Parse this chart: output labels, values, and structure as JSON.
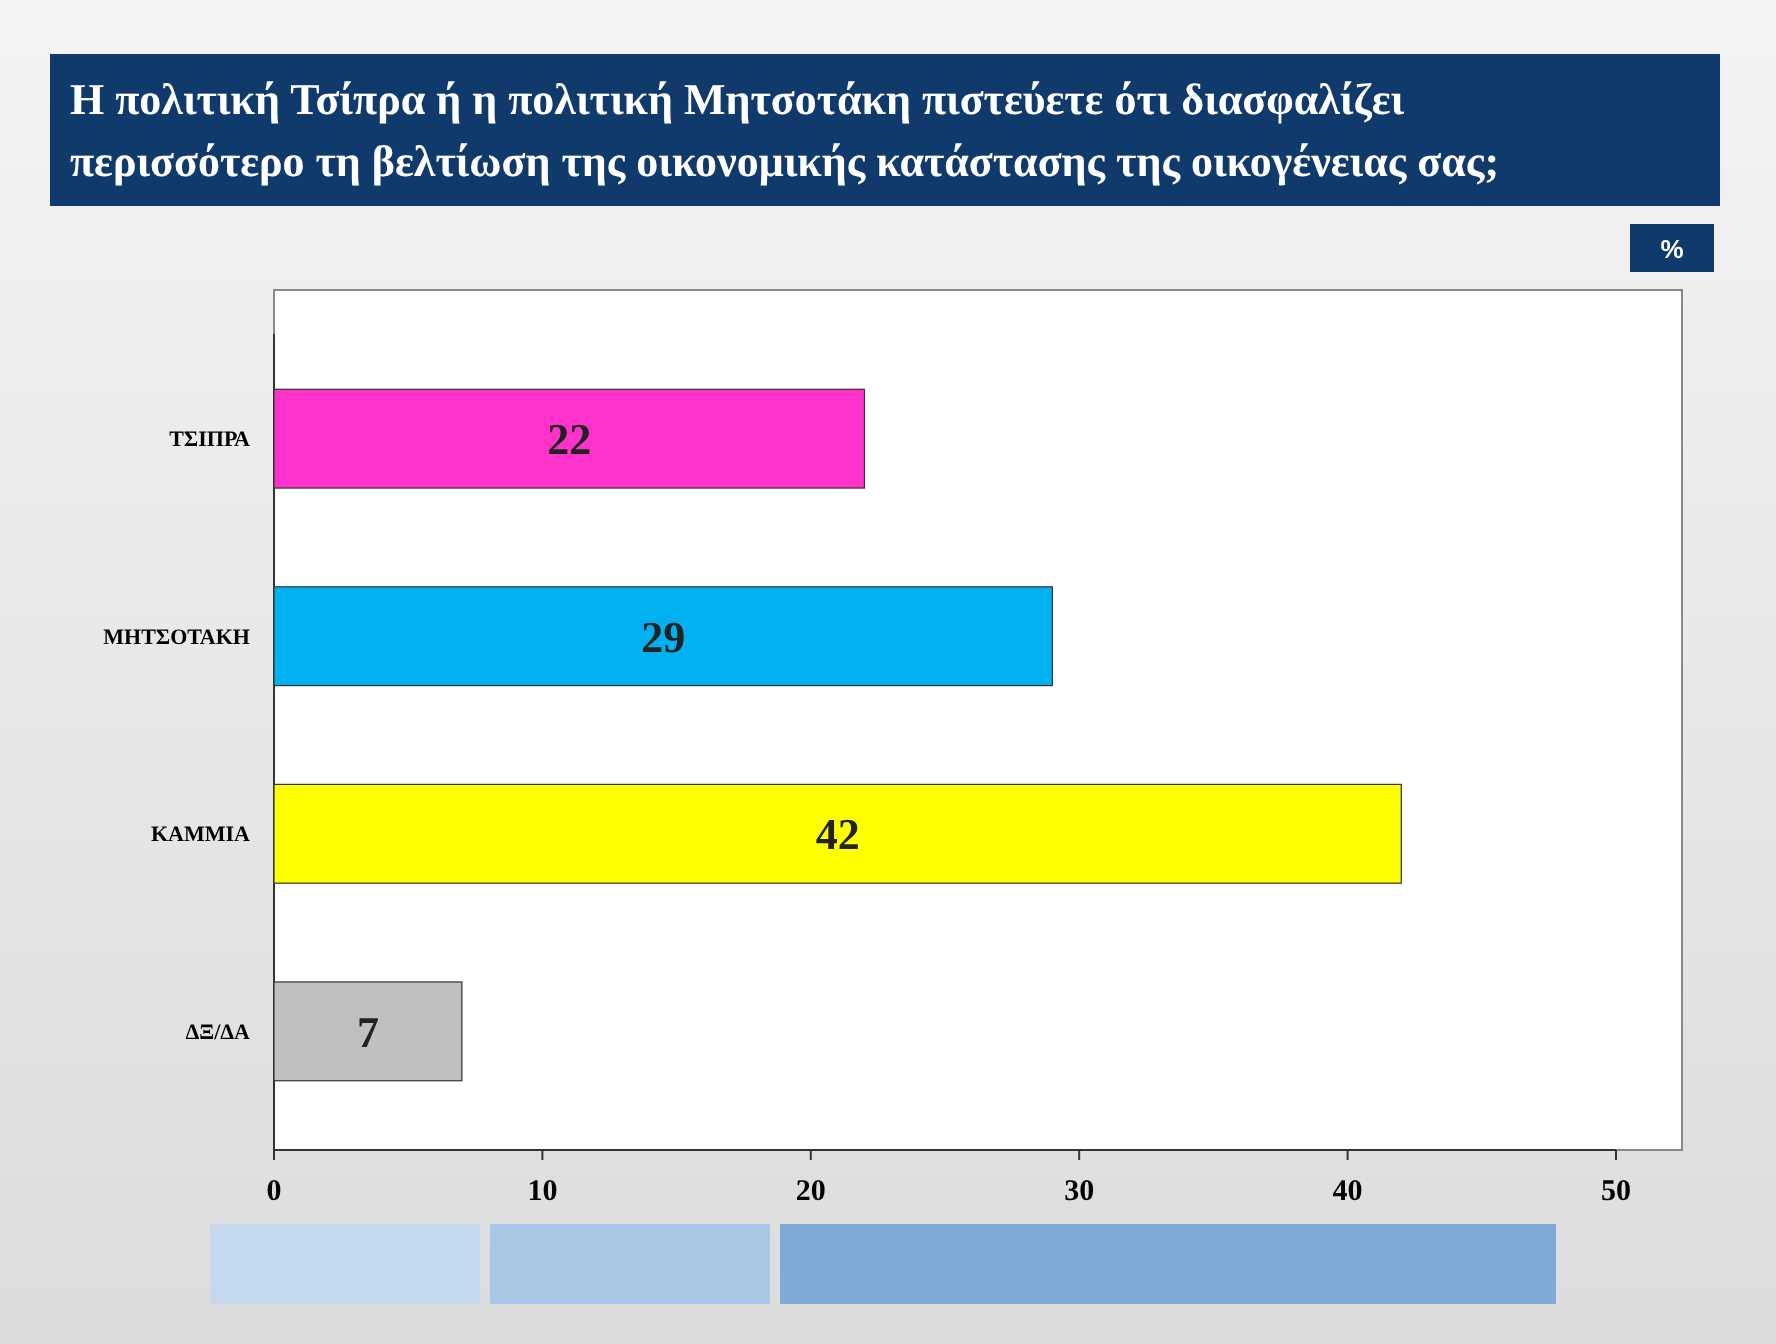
{
  "chart_data": {
    "type": "bar",
    "orientation": "horizontal",
    "title": "Η πολιτική Τσίπρα ή η πολιτική Μητσοτάκη πιστεύετε ότι διασφαλίζει περισσότερο τη βελτίωση της οικονομικής κατάστασης της οικογένειας σας;",
    "annotations": [
      "%"
    ],
    "categories": [
      "ΤΣΙΠΡΑ",
      "ΜΗΤΣΟΤΑΚΗ",
      "ΚΑΜΜΙΑ",
      "ΔΞ/ΔΑ"
    ],
    "values": [
      22,
      29,
      42,
      7
    ],
    "colors": [
      "#ff33cc",
      "#00b0f0",
      "#ffff00",
      "#c0c0c0"
    ],
    "xlim": [
      0,
      50
    ],
    "xticks": [
      0,
      10,
      20,
      30,
      40,
      50
    ],
    "data_labels": true
  }
}
